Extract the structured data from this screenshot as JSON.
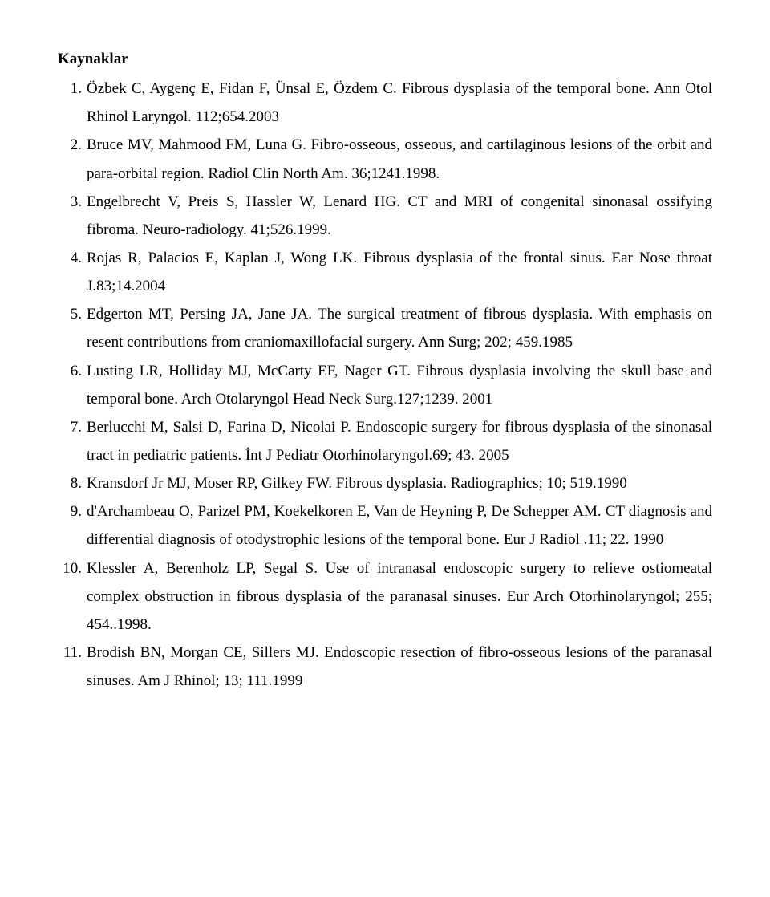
{
  "heading": "Kaynaklar",
  "references": [
    "Özbek C, Aygenç E, Fidan F, Ünsal E, Özdem C. Fibrous dysplasia of the temporal bone. Ann Otol Rhinol Laryngol. 112;654.2003",
    "Bruce MV, Mahmood FM, Luna G. Fibro-osseous, osseous, and cartilaginous lesions of the orbit and para-orbital region. Radiol Clin North Am. 36;1241.1998.",
    "Engelbrecht V, Preis S, Hassler W, Lenard HG. CT and MRI of congenital sinonasal ossifying fibroma. Neuro-radiology. 41;526.1999.",
    "Rojas R, Palacios E, Kaplan J, Wong LK. Fibrous dysplasia of the frontal sinus. Ear Nose throat J.83;14.2004",
    "Edgerton MT, Persing JA, Jane JA. The surgical treatment of fibrous dysplasia. With emphasis on resent contributions from craniomaxillofacial surgery. Ann Surg; 202; 459.1985",
    "Lusting LR, Holliday MJ, McCarty EF, Nager GT. Fibrous dysplasia involving the skull base and temporal bone. Arch Otolaryngol Head Neck Surg.127;1239. 2001",
    "Berlucchi M, Salsi D, Farina D, Nicolai P. Endoscopic surgery for fibrous dysplasia of the sinonasal tract in pediatric patients. İnt J Pediatr Otorhinolaryngol.69; 43. 2005",
    "Kransdorf Jr MJ, Moser RP, Gilkey FW. Fibrous dysplasia. Radiographics; 10; 519.1990",
    "d'Archambeau O, Parizel PM, Koekelkoren E, Van de Heyning P, De Schepper AM. CT diagnosis and differential diagnosis of otodystrophic lesions of the temporal bone. Eur J Radiol .11; 22. 1990",
    "Klessler A, Berenholz LP, Segal S. Use of intranasal endoscopic surgery to relieve ostiomeatal complex obstruction in fibrous dysplasia of the paranasal sinuses. Eur Arch Otorhinolaryngol; 255; 454..1998.",
    "Brodish BN, Morgan CE, Sillers MJ. Endoscopic resection of fibro-osseous lesions of the paranasal sinuses. Am J Rhinol; 13; 111.1999"
  ]
}
